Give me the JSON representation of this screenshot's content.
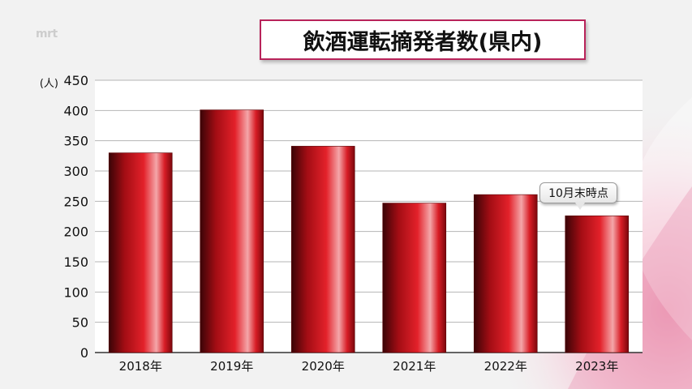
{
  "watermark": "mrt",
  "colors": {
    "bar": "#d7171f",
    "frame": "#b8235a",
    "accent_bg": "#f2b6cb"
  },
  "chart_data": {
    "type": "bar",
    "title": "飲酒運転摘発者数(県内)",
    "unit_label": "(人)",
    "categories": [
      "2018年",
      "2019年",
      "2020年",
      "2021年",
      "2022年",
      "2023年"
    ],
    "values": [
      330,
      401,
      341,
      247,
      261,
      226
    ],
    "ylim": [
      0,
      450
    ],
    "yticks": [
      "0",
      "50",
      "100",
      "150",
      "200",
      "250",
      "300",
      "350",
      "400",
      "450"
    ],
    "grid": true,
    "annotation": {
      "category": "2023年",
      "text": "10月末時点"
    }
  }
}
